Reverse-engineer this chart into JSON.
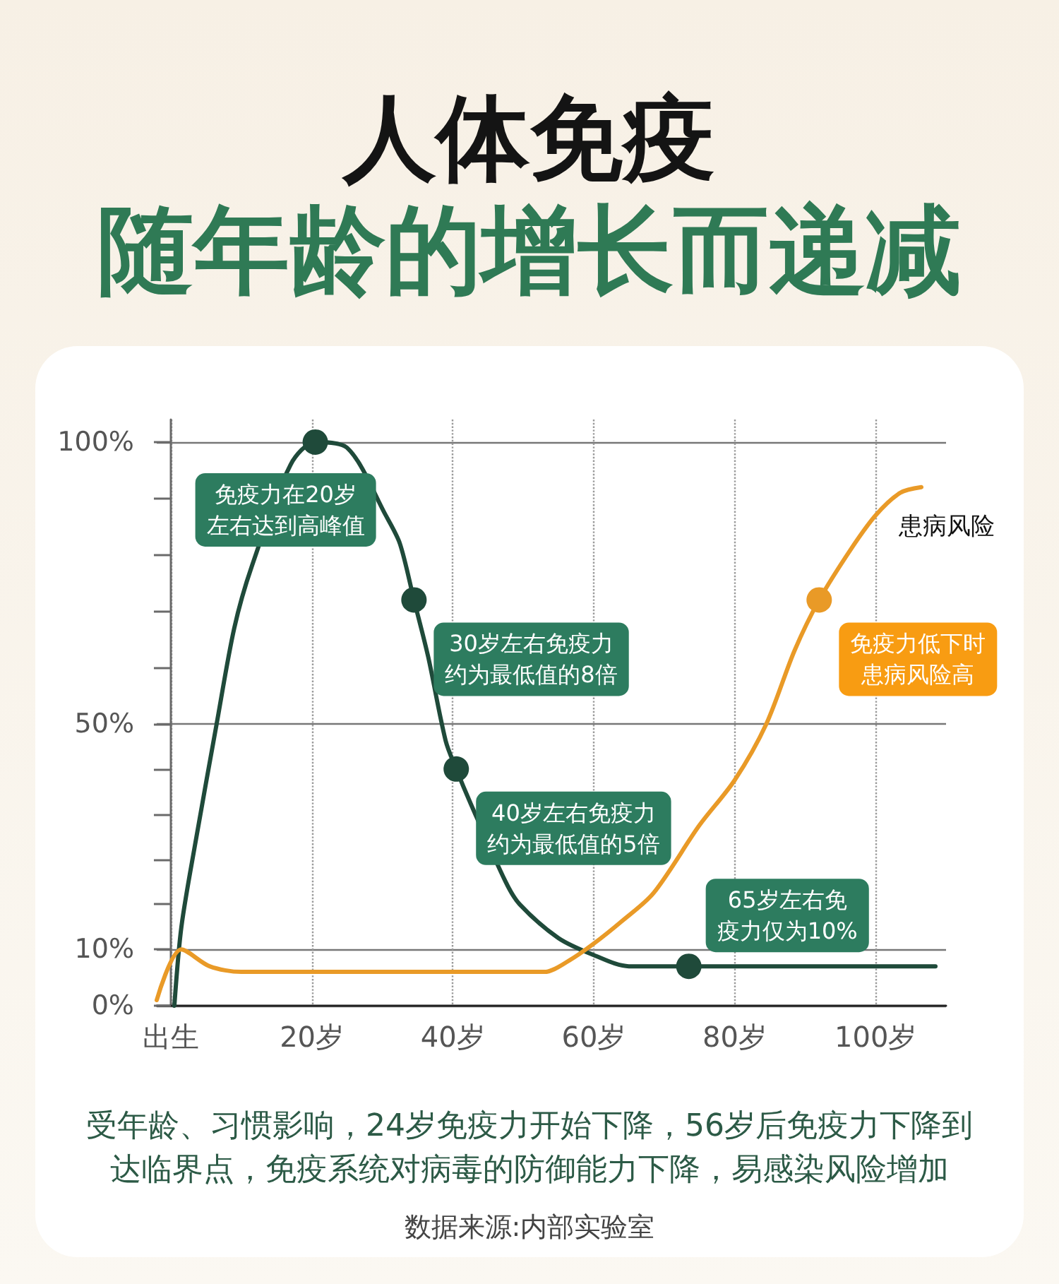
{
  "chart_data": {
    "type": "line",
    "title": "人体免疫",
    "subtitle": "随年龄的增长而递减",
    "xlim": [
      -2,
      110
    ],
    "xticks": [
      {
        "value": 0,
        "label": "出生"
      },
      {
        "value": 20,
        "label": "20岁"
      },
      {
        "value": 40,
        "label": "40岁"
      },
      {
        "value": 60,
        "label": "60岁"
      },
      {
        "value": 80,
        "label": "80岁"
      },
      {
        "value": 100,
        "label": "100岁"
      }
    ],
    "ylim": [
      0,
      104
    ],
    "yticks": [
      {
        "value": 0,
        "label": "0%"
      },
      {
        "value": 10,
        "label": "10%"
      },
      {
        "value": 18,
        "label": null
      },
      {
        "value": 26,
        "label": null
      },
      {
        "value": 34,
        "label": null
      },
      {
        "value": 42,
        "label": null
      },
      {
        "value": 50,
        "label": "50%"
      },
      {
        "value": 60,
        "label": null
      },
      {
        "value": 70,
        "label": null
      },
      {
        "value": 80,
        "label": null
      },
      {
        "value": 90,
        "label": null
      },
      {
        "value": 100,
        "label": "100%"
      }
    ],
    "grid": true,
    "series": [
      {
        "color": "#1f4a3a",
        "x": [
          0.5,
          1.5,
          3.5,
          6.5,
          9,
          11.5,
          17,
          20.5,
          25,
          30.5,
          32.5,
          34.5,
          36.5,
          39,
          40.5,
          42.5,
          47.5,
          49.5,
          55,
          60,
          65,
          70,
          73.5,
          82,
          108.5
        ],
        "values": [
          0,
          14,
          29,
          50,
          67,
          78,
          96,
          100,
          99,
          87,
          82,
          72,
          62,
          47,
          42,
          36,
          22,
          18,
          12,
          9,
          7,
          7,
          7,
          7,
          7
        ]
      },
      {
        "name": "患病风险",
        "color": "#e99a27",
        "x": [
          -2,
          1.5,
          5.5,
          10,
          53,
          56.5,
          60,
          64,
          68.5,
          75,
          80,
          84.5,
          88.5,
          92,
          96.5,
          100,
          103.5,
          106.5
        ],
        "values": [
          1,
          10,
          7,
          6,
          6,
          8,
          11,
          15,
          20,
          32,
          40,
          50,
          63,
          72,
          81,
          87,
          91,
          92
        ]
      }
    ],
    "annotations": [
      {
        "text": "免疫力在20岁左右达到高峰值",
        "x": 20.5,
        "y": 100
      },
      {
        "text": "30岁左右免疫力约为最低值的8倍",
        "x": 34.5,
        "y": 72
      },
      {
        "text": "40岁左右免疫力约为最低值的5倍",
        "x": 40.5,
        "y": 42
      },
      {
        "text": "65岁左右免疫力仅为10%",
        "x": 73.5,
        "y": 7
      },
      {
        "text": "免疫力低下时患病风险高",
        "x": 92,
        "y": 72
      },
      "受年龄、习惯影响，24岁免疫力开始下降，56岁后免疫力下降到达临界点，免疫系统对病毒的防御能力下降，易感染风险增加",
      "数据来源:内部实验室"
    ]
  }
}
